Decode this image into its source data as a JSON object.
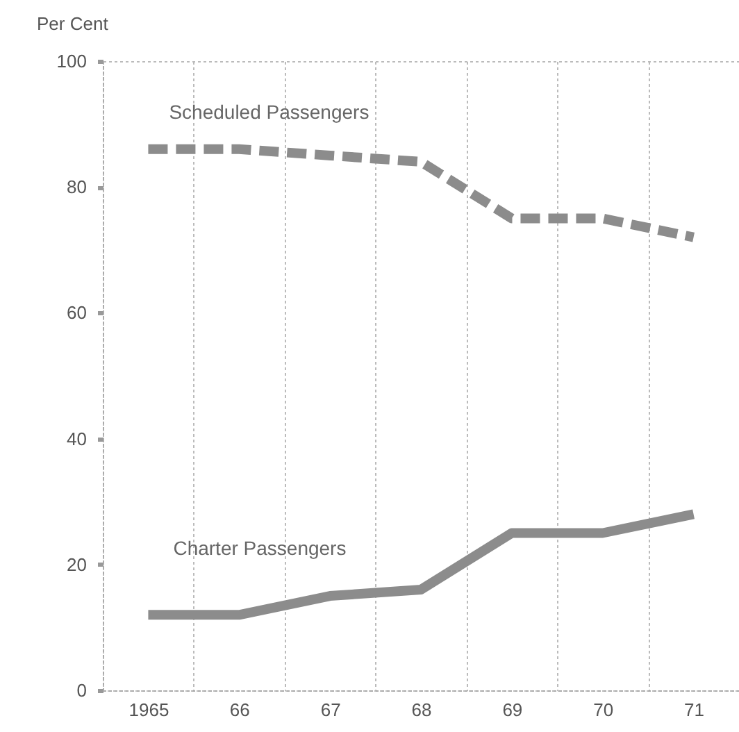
{
  "chart_data": {
    "type": "line",
    "ylabel": "Per Cent",
    "categories": [
      "1965",
      "66",
      "67",
      "68",
      "69",
      "70",
      "71"
    ],
    "series": [
      {
        "name": "Scheduled Passengers",
        "color": "#8c8c8c",
        "line_style": "dashed",
        "values": [
          86,
          86,
          85,
          84,
          75,
          75,
          72
        ]
      },
      {
        "name": "Charter Passengers",
        "color": "#8c8c8c",
        "line_style": "solid",
        "values": [
          12,
          12,
          15,
          16,
          25,
          25,
          28
        ]
      }
    ],
    "ylim": [
      0,
      100
    ],
    "yticks": [
      0,
      20,
      40,
      60,
      80,
      100
    ],
    "grid": "x"
  }
}
